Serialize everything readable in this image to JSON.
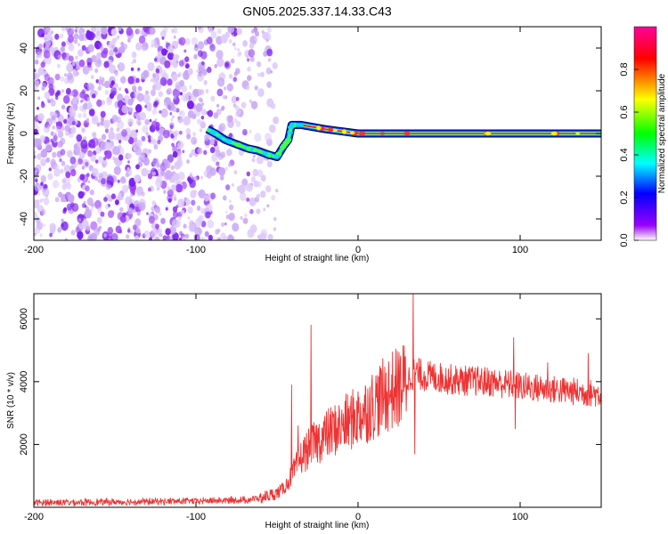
{
  "title": "GN05.2025.337.14.33.C43",
  "chart_data": [
    {
      "type": "heatmap",
      "name": "spectrogram",
      "xlabel": "Height of straight line (km)",
      "ylabel": "Frequency (Hz)",
      "xlim": [
        -200,
        150
      ],
      "ylim": [
        -50,
        50
      ],
      "x_ticks": [
        -200,
        -100,
        0,
        100
      ],
      "x_tick_labels": [
        "-200",
        "-100",
        "0",
        "100"
      ],
      "y_ticks": [
        -40,
        -20,
        0,
        20,
        40
      ],
      "y_tick_labels": [
        "-40",
        "-20",
        "0",
        "20",
        "40"
      ],
      "colorbar": {
        "label": "Normalized spectral amplitude",
        "range": [
          0,
          1
        ],
        "ticks": [
          0,
          0.2,
          0.4,
          0.6,
          0.8
        ],
        "tick_labels": [
          "0.0",
          "0.2",
          "0.4",
          "0.6",
          "0.8"
        ],
        "colors": [
          "#ffffff",
          "#9900ff",
          "#0000ff",
          "#00ffff",
          "#00ff00",
          "#ffff00",
          "#ff0000",
          "#ff0099"
        ]
      },
      "noise_region_x": [
        -200,
        -60
      ],
      "signal_track": [
        {
          "x": -93,
          "y": 2
        },
        {
          "x": -88,
          "y": 0
        },
        {
          "x": -82,
          "y": -3
        },
        {
          "x": -75,
          "y": -5
        },
        {
          "x": -68,
          "y": -7
        },
        {
          "x": -62,
          "y": -8
        },
        {
          "x": -55,
          "y": -10
        },
        {
          "x": -50,
          "y": -11
        },
        {
          "x": -46,
          "y": -6
        },
        {
          "x": -43,
          "y": -3
        },
        {
          "x": -41,
          "y": 4
        },
        {
          "x": -35,
          "y": 4
        },
        {
          "x": -20,
          "y": 2
        },
        {
          "x": -10,
          "y": 1
        },
        {
          "x": 0,
          "y": 0
        },
        {
          "x": 50,
          "y": 0
        },
        {
          "x": 100,
          "y": 0
        },
        {
          "x": 150,
          "y": 0
        }
      ]
    },
    {
      "type": "line",
      "name": "snr",
      "xlabel": "Height of straight line (km)",
      "ylabel": "SNR (10 * v/v)",
      "xlim": [
        -200,
        150
      ],
      "ylim": [
        0,
        6800
      ],
      "x_ticks": [
        -200,
        -100,
        0,
        100
      ],
      "x_tick_labels": [
        "-200",
        "-100",
        "0",
        "100"
      ],
      "y_ticks": [
        2000,
        4000,
        6000
      ],
      "y_tick_labels": [
        "2000",
        "4000",
        "6000"
      ],
      "color": "#ee3333",
      "x": [
        -200,
        -150,
        -100,
        -70,
        -60,
        -50,
        -45,
        -40,
        -35,
        -30,
        -25,
        -20,
        -10,
        0,
        10,
        20,
        25,
        30,
        33,
        35,
        40,
        60,
        80,
        95,
        100,
        120,
        140,
        150
      ],
      "values": [
        150,
        170,
        200,
        230,
        300,
        450,
        650,
        1100,
        1600,
        1900,
        2100,
        2300,
        2600,
        2900,
        3300,
        3700,
        3800,
        4000,
        4200,
        4300,
        4200,
        4050,
        4000,
        3900,
        3850,
        3750,
        3650,
        3600
      ],
      "spikes": [
        {
          "x": -41,
          "value": 3900
        },
        {
          "x": -37,
          "value": 2600
        },
        {
          "x": -29,
          "value": 5800
        },
        {
          "x": -27,
          "value": 2300
        },
        {
          "x": -10,
          "value": 3100
        },
        {
          "x": 28,
          "value": 4400
        },
        {
          "x": 34,
          "value": 6800
        },
        {
          "x": 35,
          "value": 1700
        },
        {
          "x": 96,
          "value": 5400
        },
        {
          "x": 97,
          "value": 2500
        },
        {
          "x": 117,
          "value": 4600
        },
        {
          "x": 142,
          "value": 4900
        }
      ]
    }
  ]
}
